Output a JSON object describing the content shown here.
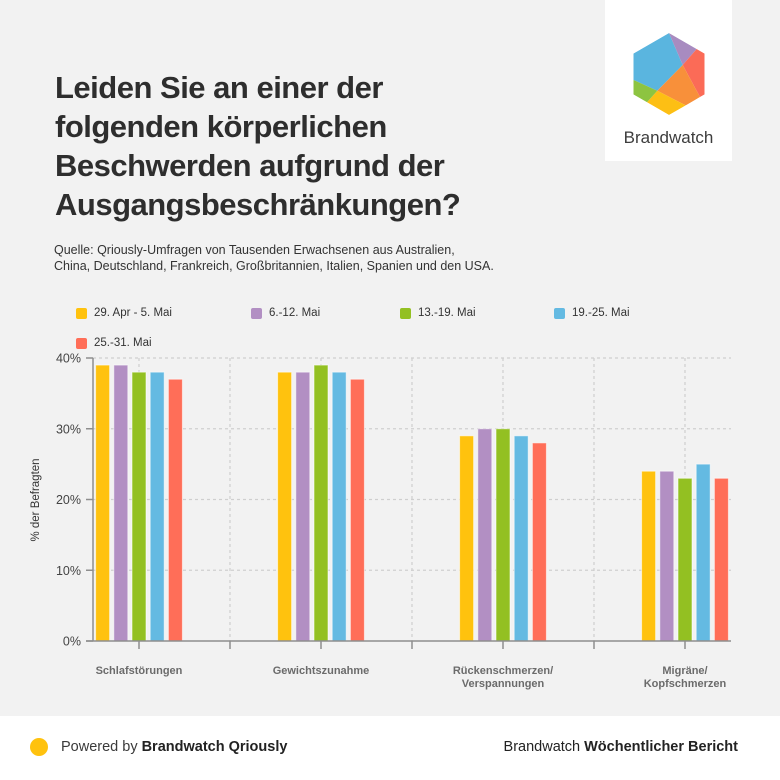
{
  "header": {
    "title": "Leiden Sie an einer der folgenden körperlichen Beschwerden aufgrund der Ausgangsbeschränkungen?",
    "subtitle_lines": [
      "Quelle: Qriously-Umfragen von Tausenden Erwachsenen aus Australien,",
      "China, Deutschland, Frankreich, Großbritannien, Italien, Spanien und den USA."
    ]
  },
  "logo": {
    "icon": "brandwatch-hexagon-logo",
    "text": "Brandwatch"
  },
  "chart_data": {
    "type": "bar",
    "title": "Leiden Sie an einer der folgenden körperlichen Beschwerden aufgrund der Ausgangsbeschränkungen?",
    "categories": [
      "Schlafstörungen",
      "Gewichtszunahme",
      "Rückenschmerzen/\nVerspannungen",
      "Migräne/\nKopfschmerzen"
    ],
    "series": [
      {
        "name": "29. Apr - 5. Mai",
        "color": "#FFC20E",
        "values": [
          39,
          38,
          29,
          24
        ]
      },
      {
        "name": "6.-12. Mai",
        "color": "#B28FC3",
        "values": [
          39,
          38,
          30,
          24
        ]
      },
      {
        "name": "13.-19. Mai",
        "color": "#93C022",
        "values": [
          38,
          39,
          30,
          23
        ]
      },
      {
        "name": "19.-25. Mai",
        "color": "#64BAE2",
        "values": [
          38,
          38,
          29,
          25
        ]
      },
      {
        "name": "25.-31. Mai",
        "color": "#FF6E58",
        "values": [
          37,
          37,
          28,
          23
        ]
      }
    ],
    "xlabel": "",
    "ylabel": "% der Befragten",
    "ylim": [
      0,
      40
    ],
    "yticks": [
      0,
      10,
      20,
      30,
      40
    ],
    "ytick_labels": [
      "0%",
      "10%",
      "20%",
      "30%",
      "40%"
    ],
    "grid": true,
    "legend_position": "top"
  },
  "footer": {
    "powered_prefix": "Powered by",
    "powered_brand": "Brandwatch Qriously",
    "report_prefix": "Brandwatch",
    "report_name": "Wöchentlicher Bericht",
    "dot_color": "#FFC20E"
  }
}
